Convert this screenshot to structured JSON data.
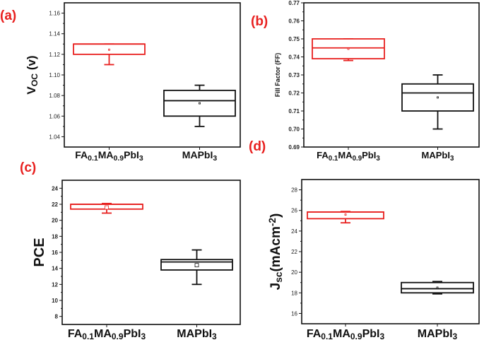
{
  "chart_data": [
    {
      "type": "box",
      "panel_label": "(a)",
      "ylabel": {
        "main": "V",
        "sub": "OC",
        "rest": " (v)"
      },
      "categories": [
        {
          "parts": [
            [
              "FA",
              ""
            ],
            [
              "0.1",
              "sub"
            ],
            [
              "MA",
              ""
            ],
            [
              "0.9",
              "sub"
            ],
            [
              "PbI",
              ""
            ],
            [
              "3",
              "sub"
            ]
          ]
        },
        {
          "parts": [
            [
              "MAPbI",
              ""
            ],
            [
              "3",
              "sub"
            ]
          ]
        }
      ],
      "ylim": [
        1.03,
        1.17
      ],
      "yticks": [
        "1.04",
        "1.06",
        "1.08",
        "1.10",
        "1.12",
        "1.14",
        "1.16"
      ],
      "boxes": [
        {
          "color": "#e8201f",
          "q1": 1.12,
          "median": 1.13,
          "q3": 1.13,
          "whisker_low": 1.11,
          "whisker_high": 1.13,
          "mean": 1.1245
        },
        {
          "color": "#111111",
          "q1": 1.06,
          "median": 1.075,
          "q3": 1.085,
          "whisker_low": 1.05,
          "whisker_high": 1.09,
          "mean": 1.0725
        }
      ]
    },
    {
      "type": "box",
      "panel_label": "(b)",
      "ylabel": {
        "main": "Fill Factor (FF)",
        "sub": "",
        "rest": ""
      },
      "categories": [
        {
          "parts": [
            [
              "FA",
              ""
            ],
            [
              "0.1",
              "sub"
            ],
            [
              "MA",
              ""
            ],
            [
              "0.9",
              "sub"
            ],
            [
              "PbI",
              ""
            ],
            [
              "3",
              "sub"
            ]
          ]
        },
        {
          "parts": [
            [
              "MAPbI",
              ""
            ],
            [
              "3",
              "sub"
            ]
          ]
        }
      ],
      "ylim": [
        0.69,
        0.77
      ],
      "yticks": [
        "0.69",
        "0.70",
        "0.71",
        "0.72",
        "0.73",
        "0.74",
        "0.75",
        "0.76",
        "0.77"
      ],
      "boxes": [
        {
          "color": "#e8201f",
          "q1": 0.739,
          "median": 0.745,
          "q3": 0.75,
          "whisker_low": 0.738,
          "whisker_high": 0.75,
          "mean": 0.7445
        },
        {
          "color": "#111111",
          "q1": 0.71,
          "median": 0.72,
          "q3": 0.725,
          "whisker_low": 0.7,
          "whisker_high": 0.73,
          "mean": 0.7175
        }
      ]
    },
    {
      "type": "box",
      "panel_label": "(c)",
      "ylabel": {
        "main": "PCE",
        "sub": "",
        "rest": ""
      },
      "categories": [
        {
          "parts": [
            [
              "FA",
              ""
            ],
            [
              "0.1",
              "sub"
            ],
            [
              "MA",
              ""
            ],
            [
              "0.9",
              "sub"
            ],
            [
              "PbI",
              ""
            ],
            [
              "3",
              "sub"
            ]
          ]
        },
        {
          "parts": [
            [
              "MAPbI",
              ""
            ],
            [
              "3",
              "sub"
            ]
          ]
        }
      ],
      "ylim": [
        7,
        25
      ],
      "yticks": [
        "8",
        "10",
        "12",
        "14",
        "16",
        "18",
        "20",
        "22",
        "24"
      ],
      "boxes": [
        {
          "color": "#e8201f",
          "q1": 21.4,
          "median": 22.0,
          "q3": 22.0,
          "whisker_low": 20.9,
          "whisker_high": 22.1,
          "mean": 21.6
        },
        {
          "color": "#111111",
          "q1": 13.8,
          "median": 14.8,
          "q3": 15.1,
          "whisker_low": 12.0,
          "whisker_high": 16.3,
          "mean": 14.4
        }
      ]
    },
    {
      "type": "box",
      "panel_label": "(d)",
      "ylabel": {
        "main": "J",
        "sub": "sc",
        "rest": "(mAcm",
        "sup": "-2",
        "end": ")"
      },
      "categories": [
        {
          "parts": [
            [
              "FA",
              ""
            ],
            [
              "0.1",
              "sub"
            ],
            [
              "MA",
              ""
            ],
            [
              "0.9",
              "sub"
            ],
            [
              "PbI",
              ""
            ],
            [
              "3",
              "sub"
            ]
          ]
        },
        {
          "parts": [
            [
              "MAPbI",
              ""
            ],
            [
              "3",
              "sub"
            ]
          ]
        }
      ],
      "ylim": [
        15,
        29
      ],
      "yticks": [
        "16",
        "18",
        "20",
        "22",
        "24",
        "26",
        "28"
      ],
      "boxes": [
        {
          "color": "#e8201f",
          "q1": 25.2,
          "median": 25.85,
          "q3": 25.85,
          "whisker_low": 24.8,
          "whisker_high": 25.9,
          "mean": 25.6
        },
        {
          "color": "#111111",
          "q1": 18.0,
          "median": 18.4,
          "q3": 19.0,
          "whisker_low": 17.9,
          "whisker_high": 19.1,
          "mean": 18.5
        }
      ]
    }
  ]
}
